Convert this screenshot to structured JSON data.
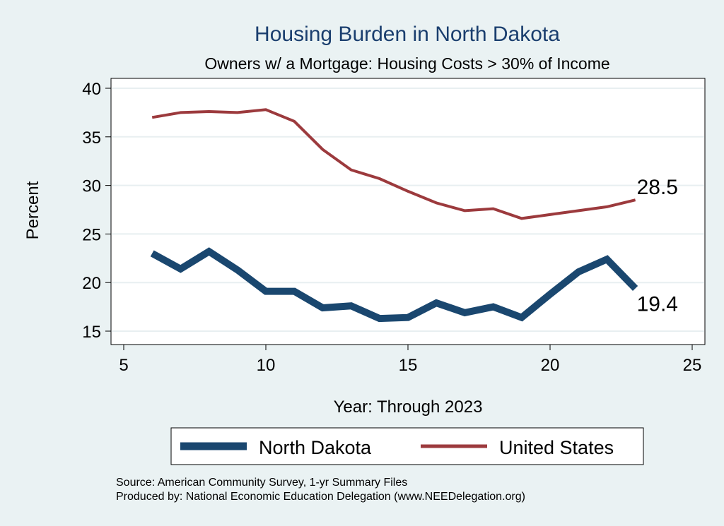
{
  "chart_data": {
    "type": "line",
    "title": "Housing Burden in North Dakota",
    "subtitle": "Owners w/ a Mortgage: Housing Costs > 30% of Income",
    "xlabel": "Year: Through 2023",
    "ylabel": "Percent",
    "xlim": [
      5,
      25
    ],
    "ylim": [
      15,
      40
    ],
    "x_ticks": [
      5,
      10,
      15,
      20,
      25
    ],
    "y_ticks": [
      15,
      20,
      25,
      30,
      35,
      40
    ],
    "grid": true,
    "legend_position": "bottom",
    "x": [
      6,
      7,
      8,
      9,
      10,
      11,
      12,
      13,
      14,
      15,
      16,
      17,
      18,
      19,
      20,
      21,
      22,
      23
    ],
    "series": [
      {
        "name": "North Dakota",
        "color": "#1a476f",
        "values": [
          23.0,
          21.4,
          23.2,
          21.3,
          19.1,
          19.1,
          17.4,
          17.6,
          16.3,
          16.4,
          17.9,
          16.9,
          17.5,
          16.4,
          18.8,
          21.1,
          22.4,
          19.4
        ],
        "end_label": "19.4"
      },
      {
        "name": "United States",
        "color": "#9c3a3d",
        "values": [
          37.0,
          37.5,
          37.6,
          37.5,
          37.8,
          36.6,
          33.7,
          31.6,
          30.7,
          29.4,
          28.2,
          27.4,
          27.6,
          26.6,
          27.0,
          27.4,
          27.8,
          28.5
        ],
        "end_label": "28.5"
      }
    ]
  },
  "notes": {
    "source": "Source: American Community Survey, 1-yr Summary Files",
    "produced": "Produced by: National Economic Education Delegation (www.NEEDelegation.org)"
  }
}
